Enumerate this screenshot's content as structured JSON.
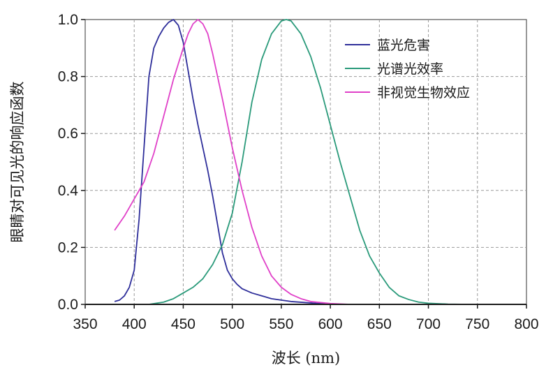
{
  "chart_data": {
    "type": "line",
    "xlabel": "波长 (nm)",
    "ylabel": "眼睛对可见光的响应函数",
    "xlim": [
      350,
      800
    ],
    "ylim": [
      0,
      1.0
    ],
    "x_ticks": [
      "350",
      "400",
      "450",
      "500",
      "550",
      "600",
      "650",
      "700",
      "750",
      "800"
    ],
    "y_ticks": [
      "0.0",
      "0.2",
      "0.4",
      "0.6",
      "0.8",
      "1.0"
    ],
    "grid": true,
    "legend_position": "top-right",
    "series": [
      {
        "name": "蓝光危害",
        "color": "#2e2e9a",
        "points": [
          [
            380,
            0.01
          ],
          [
            385,
            0.015
          ],
          [
            390,
            0.03
          ],
          [
            395,
            0.06
          ],
          [
            400,
            0.12
          ],
          [
            405,
            0.3
          ],
          [
            410,
            0.55
          ],
          [
            415,
            0.8
          ],
          [
            420,
            0.9
          ],
          [
            425,
            0.94
          ],
          [
            430,
            0.97
          ],
          [
            435,
            0.99
          ],
          [
            440,
            1.0
          ],
          [
            445,
            0.98
          ],
          [
            450,
            0.92
          ],
          [
            455,
            0.82
          ],
          [
            460,
            0.72
          ],
          [
            465,
            0.63
          ],
          [
            470,
            0.55
          ],
          [
            475,
            0.47
          ],
          [
            480,
            0.38
          ],
          [
            485,
            0.28
          ],
          [
            490,
            0.18
          ],
          [
            495,
            0.12
          ],
          [
            500,
            0.09
          ],
          [
            505,
            0.07
          ],
          [
            510,
            0.055
          ],
          [
            520,
            0.04
          ],
          [
            530,
            0.03
          ],
          [
            540,
            0.02
          ],
          [
            550,
            0.015
          ],
          [
            560,
            0.01
          ],
          [
            580,
            0.005
          ],
          [
            600,
            0.0
          ],
          [
            700,
            0.0
          ]
        ]
      },
      {
        "name": "光谱光效率",
        "color": "#2a9a7a",
        "points": [
          [
            415,
            0.0
          ],
          [
            430,
            0.008
          ],
          [
            440,
            0.02
          ],
          [
            450,
            0.04
          ],
          [
            460,
            0.06
          ],
          [
            470,
            0.09
          ],
          [
            480,
            0.14
          ],
          [
            490,
            0.21
          ],
          [
            500,
            0.32
          ],
          [
            510,
            0.5
          ],
          [
            520,
            0.71
          ],
          [
            530,
            0.86
          ],
          [
            540,
            0.95
          ],
          [
            550,
            0.995
          ],
          [
            555,
            1.0
          ],
          [
            560,
            0.995
          ],
          [
            570,
            0.95
          ],
          [
            580,
            0.87
          ],
          [
            590,
            0.76
          ],
          [
            600,
            0.63
          ],
          [
            610,
            0.5
          ],
          [
            620,
            0.38
          ],
          [
            630,
            0.26
          ],
          [
            640,
            0.17
          ],
          [
            650,
            0.11
          ],
          [
            660,
            0.06
          ],
          [
            670,
            0.03
          ],
          [
            680,
            0.017
          ],
          [
            690,
            0.008
          ],
          [
            700,
            0.004
          ],
          [
            720,
            0.001
          ],
          [
            740,
            0.0
          ],
          [
            780,
            0.0
          ]
        ]
      },
      {
        "name": "非视觉生物效应",
        "color": "#e040c8",
        "points": [
          [
            380,
            0.26
          ],
          [
            390,
            0.31
          ],
          [
            400,
            0.37
          ],
          [
            410,
            0.43
          ],
          [
            420,
            0.53
          ],
          [
            430,
            0.66
          ],
          [
            440,
            0.79
          ],
          [
            450,
            0.9
          ],
          [
            455,
            0.95
          ],
          [
            460,
            0.985
          ],
          [
            465,
            1.0
          ],
          [
            470,
            0.985
          ],
          [
            475,
            0.95
          ],
          [
            480,
            0.88
          ],
          [
            490,
            0.72
          ],
          [
            500,
            0.55
          ],
          [
            510,
            0.4
          ],
          [
            520,
            0.27
          ],
          [
            530,
            0.17
          ],
          [
            540,
            0.1
          ],
          [
            550,
            0.06
          ],
          [
            560,
            0.035
          ],
          [
            570,
            0.02
          ],
          [
            580,
            0.01
          ],
          [
            600,
            0.003
          ],
          [
            620,
            0.0
          ],
          [
            700,
            0.0
          ]
        ]
      }
    ]
  }
}
